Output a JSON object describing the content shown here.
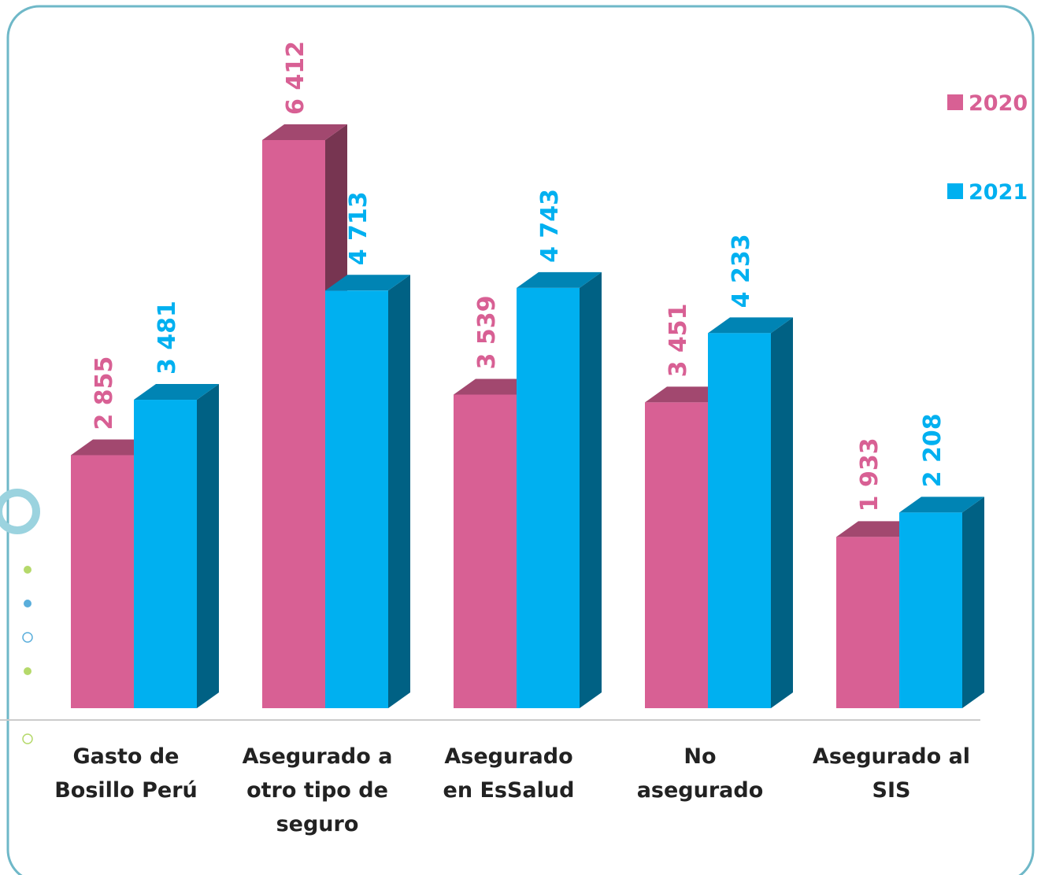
{
  "chart_data": {
    "type": "bar3d",
    "categories": [
      "Gasto de Bosillo Perú",
      "Asegurado a otro tipo de seguro",
      "Asegurado en EsSalud",
      "No asegurado",
      "Asegurado al SIS"
    ],
    "series": [
      {
        "name": "2020",
        "color": "#d86094",
        "values": [
          2855,
          6412,
          3539,
          3451,
          1933
        ],
        "value_labels": [
          "2 855",
          "6 412",
          "3 539",
          "3 451",
          "1 933"
        ]
      },
      {
        "name": "2021",
        "color": "#00b0f0",
        "values": [
          3481,
          4713,
          4743,
          4233,
          2208
        ],
        "value_labels": [
          "3 481",
          "4 713",
          "4 743",
          "4 233",
          "2 208"
        ]
      }
    ],
    "legend": "top-right"
  }
}
